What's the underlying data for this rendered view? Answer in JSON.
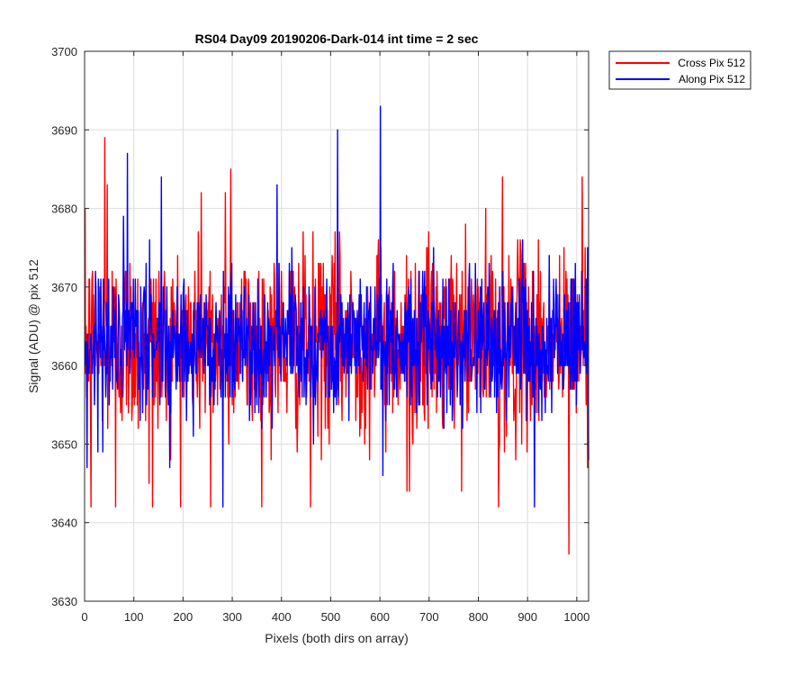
{
  "chart_data": {
    "type": "line",
    "title": "RS04 Day09 20190206-Dark-014 int time = 2 sec",
    "xlabel": "Pixels (both dirs on array)",
    "ylabel": "Signal (ADU) @ pix 512",
    "xlim": [
      0,
      1024
    ],
    "ylim": [
      3630,
      3700
    ],
    "xticks": [
      0,
      100,
      200,
      300,
      400,
      500,
      600,
      700,
      800,
      900,
      1000
    ],
    "yticks": [
      3630,
      3640,
      3650,
      3660,
      3670,
      3680,
      3690,
      3700
    ],
    "grid": true,
    "legend_location": "outside-top-right",
    "series": [
      {
        "name": "Cross Pix 512",
        "color": "#ff0000",
        "n_points": 1024,
        "mean": 3663,
        "spread": 8,
        "peaks": [
          [
            12,
            3642
          ],
          [
            40,
            3689
          ],
          [
            45,
            3683
          ],
          [
            62,
            3642
          ],
          [
            130,
            3645
          ],
          [
            137,
            3642
          ],
          [
            236,
            3682
          ],
          [
            255,
            3642
          ],
          [
            285,
            3682
          ],
          [
            296,
            3685
          ],
          [
            458,
            3642
          ],
          [
            654,
            3644
          ],
          [
            659,
            3644
          ],
          [
            765,
            3644
          ],
          [
            840,
            3642
          ],
          [
            848,
            3684
          ],
          [
            983,
            3636
          ],
          [
            1010,
            3684
          ]
        ]
      },
      {
        "name": "Along Pix 512",
        "color": "#0000ff",
        "n_points": 1024,
        "mean": 3663,
        "spread": 6,
        "peaks": [
          [
            4,
            3647
          ],
          [
            86,
            3687
          ],
          [
            155,
            3684
          ],
          [
            280,
            3642
          ],
          [
            390,
            3683
          ],
          [
            513,
            3690
          ],
          [
            600,
            3693
          ],
          [
            605,
            3646
          ],
          [
            913,
            3642
          ],
          [
            1024,
            3648
          ]
        ]
      }
    ]
  }
}
